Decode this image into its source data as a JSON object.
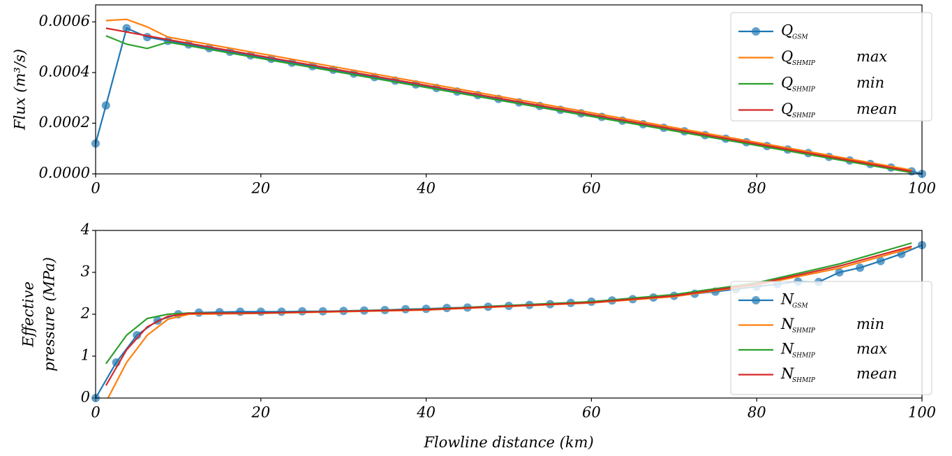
{
  "chart_data": [
    {
      "type": "line",
      "ylabel": "Flux (m³/s)",
      "xlim": [
        0,
        100
      ],
      "xticks": [
        0,
        20,
        40,
        60,
        80,
        100
      ],
      "ylim": [
        0,
        0.000667
      ],
      "yticks": [
        {
          "value": 0,
          "label": "0.0000"
        },
        {
          "value": 0.0002,
          "label": "0.0002"
        },
        {
          "value": 0.0004,
          "label": "0.0004"
        },
        {
          "value": 0.0006,
          "label": "0.0006"
        }
      ],
      "x": [
        0,
        1.25,
        3.75,
        6.25,
        8.75,
        11.25,
        13.75,
        16.25,
        18.75,
        21.25,
        23.75,
        26.25,
        28.75,
        31.25,
        33.75,
        36.25,
        38.75,
        41.25,
        43.75,
        46.25,
        48.75,
        51.25,
        53.75,
        56.25,
        58.75,
        61.25,
        63.75,
        66.25,
        68.75,
        71.25,
        73.75,
        76.25,
        78.75,
        81.25,
        83.75,
        86.25,
        88.75,
        91.25,
        93.75,
        96.25,
        98.75,
        100
      ],
      "legend": "upper right",
      "series": [
        {
          "name": "Q",
          "sub": "GSM",
          "color": "#1f77b4",
          "marker": true,
          "values": [
            0.00012,
            0.00027,
            0.000575,
            0.00054,
            0.000525,
            0.000511,
            0.000496,
            0.000482,
            0.000468,
            0.000454,
            0.000439,
            0.000425,
            0.000411,
            0.000396,
            0.000382,
            0.000368,
            0.000353,
            0.000339,
            0.000325,
            0.000311,
            0.000296,
            0.000282,
            0.000268,
            0.000253,
            0.000239,
            0.000225,
            0.00021,
            0.000196,
            0.000182,
            0.000168,
            0.000153,
            0.000139,
            0.000125,
            0.00011,
            9.6e-05,
            8.2e-05,
            6.7e-05,
            5.3e-05,
            3.9e-05,
            2.5e-05,
            1e-05,
            0
          ]
        },
        {
          "name": "Q",
          "sub": "SHMIP",
          "qualifier": "max",
          "color": "#ff7f0e",
          "x": [
            1.25,
            3.75,
            6.25,
            8.75,
            98.75
          ],
          "values": [
            0.000605,
            0.00061,
            0.00058,
            0.00054,
            1.5e-05
          ]
        },
        {
          "name": "Q",
          "sub": "SHMIP",
          "qualifier": "min",
          "color": "#2ca02c",
          "x": [
            1.25,
            3.75,
            6.25,
            8.75,
            98.75
          ],
          "values": [
            0.000545,
            0.000512,
            0.000495,
            0.00052,
            5e-06
          ]
        },
        {
          "name": "Q",
          "sub": "SHMIP",
          "qualifier": "mean",
          "color": "#d62728",
          "x": [
            1.25,
            3.75,
            6.25,
            8.75,
            98.75
          ],
          "values": [
            0.000575,
            0.00056,
            0.000545,
            0.00053,
            1e-05
          ]
        }
      ]
    },
    {
      "type": "line",
      "ylabel": [
        "Effective",
        "pressure (MPa)"
      ],
      "xlabel": "Flowline distance (km)",
      "xlim": [
        0,
        100
      ],
      "xticks": [
        0,
        20,
        40,
        60,
        80,
        100
      ],
      "ylim": [
        0,
        4
      ],
      "yticks": [
        0,
        1,
        2,
        3,
        4
      ],
      "x": [
        0,
        2.5,
        5,
        7.5,
        10,
        12.5,
        15,
        17.5,
        20,
        22.5,
        25,
        27.5,
        30,
        32.5,
        35,
        37.5,
        40,
        42.5,
        45,
        47.5,
        50,
        52.5,
        55,
        57.5,
        60,
        62.5,
        65,
        67.5,
        70,
        72.5,
        75,
        77.5,
        80,
        82.5,
        85,
        87.5,
        90,
        92.5,
        95,
        97.5,
        100
      ],
      "legend": "lower right",
      "series": [
        {
          "name": "N",
          "sub": "GSM",
          "color": "#1f77b4",
          "marker": true,
          "values": [
            0,
            0.85,
            1.5,
            1.85,
            2.0,
            2.04,
            2.05,
            2.06,
            2.06,
            2.06,
            2.07,
            2.07,
            2.08,
            2.09,
            2.1,
            2.12,
            2.13,
            2.15,
            2.16,
            2.18,
            2.2,
            2.22,
            2.24,
            2.27,
            2.3,
            2.33,
            2.36,
            2.4,
            2.44,
            2.49,
            2.54,
            2.6,
            2.66,
            2.72,
            2.78,
            2.77,
            3.0,
            3.11,
            3.27,
            3.44,
            3.65
          ]
        },
        {
          "name": "N",
          "sub": "SHMIP",
          "qualifier": "min",
          "color": "#ff7f0e",
          "x": [
            1.5,
            3.75,
            6.25,
            8.75,
            11.25,
            20,
            40,
            60,
            70,
            80,
            90,
            98.75
          ],
          "values": [
            0,
            0.85,
            1.5,
            1.88,
            2.0,
            2.02,
            2.1,
            2.27,
            2.42,
            2.7,
            3.1,
            3.58
          ]
        },
        {
          "name": "N",
          "sub": "SHMIP",
          "qualifier": "max",
          "color": "#2ca02c",
          "x": [
            1.25,
            3.75,
            6.25,
            8.75,
            11.25,
            20,
            40,
            60,
            70,
            80,
            90,
            98.75
          ],
          "values": [
            0.82,
            1.5,
            1.9,
            2.0,
            2.03,
            2.03,
            2.12,
            2.3,
            2.47,
            2.75,
            3.2,
            3.7
          ]
        },
        {
          "name": "N",
          "sub": "SHMIP",
          "qualifier": "mean",
          "color": "#d62728",
          "x": [
            1.25,
            3.75,
            6.25,
            8.75,
            11.25,
            20,
            40,
            60,
            70,
            80,
            90,
            98.75
          ],
          "values": [
            0.3,
            1.15,
            1.7,
            1.95,
            2.02,
            2.03,
            2.11,
            2.28,
            2.44,
            2.72,
            3.15,
            3.62
          ]
        }
      ]
    }
  ]
}
